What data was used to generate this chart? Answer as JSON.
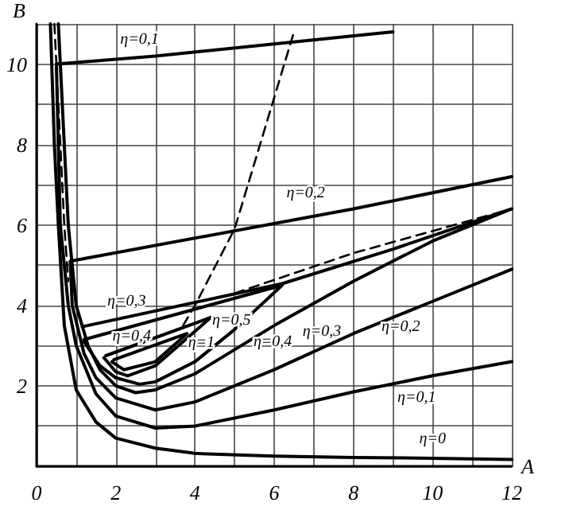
{
  "chart_data": {
    "type": "line",
    "xlabel": "A",
    "ylabel": "B",
    "xlim": [
      0,
      12
    ],
    "ylim": [
      0,
      11
    ],
    "xticks": [
      0,
      {
        "value": 1,
        "label": null
      },
      2,
      {
        "value": 3,
        "label": null
      },
      4,
      {
        "value": 5,
        "label": null
      },
      6,
      {
        "value": 7,
        "label": null
      },
      8,
      {
        "value": 9,
        "label": null
      },
      10,
      {
        "value": 11,
        "label": null
      },
      12
    ],
    "yticks": [
      {
        "value": 0,
        "label": null
      },
      {
        "value": 1,
        "label": null
      },
      2,
      {
        "value": 3,
        "label": null
      },
      4,
      {
        "value": 5,
        "label": null
      },
      6,
      {
        "value": 7,
        "label": null
      },
      8,
      {
        "value": 9,
        "label": null
      },
      10,
      {
        "value": 11,
        "label": null
      }
    ],
    "grid": true,
    "legend": false,
    "marker": "none",
    "line_style": "solid",
    "series": [
      {
        "name": "η=0",
        "color": "#000000",
        "x": [
          0.35,
          0.45,
          0.55,
          0.7,
          1,
          1.5,
          2,
          3,
          4,
          6,
          8,
          10,
          12
        ],
        "values": [
          11,
          8,
          6,
          3.5,
          1.9,
          1.1,
          0.7,
          0.45,
          0.32,
          0.25,
          0.22,
          0.2,
          0.17
        ]
      },
      {
        "name": "η=0,1",
        "color": "#000000",
        "x": [
          9,
          3,
          0.5,
          0.6,
          0.8,
          1,
          1.5,
          2,
          3,
          4,
          6,
          8,
          10,
          12
        ],
        "values": [
          10.8,
          10.2,
          10,
          6,
          4,
          3,
          1.8,
          1.25,
          0.95,
          1.0,
          1.4,
          1.85,
          2.25,
          2.6
        ]
      },
      {
        "name": "η=0,2",
        "color": "#000000",
        "x": [
          12,
          8,
          0.85,
          0.9,
          1.2,
          1.5,
          2,
          3,
          4,
          6,
          8,
          10,
          12
        ],
        "values": [
          7.2,
          6.4,
          5.1,
          4,
          2.8,
          2.2,
          1.7,
          1.4,
          1.6,
          2.4,
          3.3,
          4.1,
          4.9
        ]
      },
      {
        "name": "η=0,3",
        "color": "#000000",
        "x": [
          0.55,
          0.8,
          1,
          1.3,
          1.6,
          2,
          2.5,
          3,
          4,
          6,
          8,
          10,
          12,
          9,
          6.2,
          1.15
        ],
        "values": [
          11,
          6,
          4,
          3,
          2.4,
          2.0,
          1.83,
          1.9,
          2.3,
          3.5,
          4.6,
          5.6,
          6.4,
          5.4,
          4.54,
          3.47
        ]
      },
      {
        "name": "η=0,4",
        "color": "#000000",
        "x": [
          1.2,
          1.6,
          2,
          2.6,
          3,
          4,
          5,
          6.2,
          1.2
        ],
        "values": [
          3.1,
          2.5,
          2.2,
          2.04,
          2.1,
          2.6,
          3.4,
          4.5,
          3.15
        ]
      },
      {
        "name": "η=0,5",
        "color": "#000000",
        "x": [
          1.7,
          2,
          2.3,
          3,
          4.4,
          1.75
        ],
        "values": [
          2.7,
          2.35,
          2.25,
          2.5,
          3.7,
          2.75
        ]
      },
      {
        "name": "η=1",
        "color": "#000000",
        "x": [
          1.9,
          2.2,
          3,
          3.8,
          1.95
        ],
        "values": [
          2.6,
          2.4,
          2.6,
          3.3,
          2.65
        ]
      },
      {
        "color": "#000000",
        "line_style": "dashed",
        "x": [
          3.7,
          4.0,
          5.0,
          6.5
        ],
        "values": [
          3.5,
          4.0,
          5.9,
          10.8
        ]
      },
      {
        "color": "#000000",
        "line_style": "dashed",
        "x": [
          0.45,
          0.55,
          0.7,
          0.8
        ],
        "values": [
          11,
          9,
          6,
          4.6
        ]
      },
      {
        "color": "#000000",
        "line_style": "dashed",
        "x": [
          5,
          8,
          12
        ],
        "values": [
          4.3,
          5.3,
          6.4
        ]
      }
    ]
  }
}
